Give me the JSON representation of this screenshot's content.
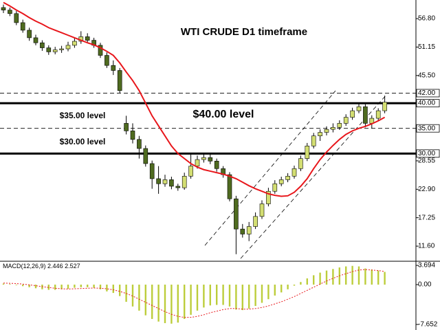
{
  "chart_data": [
    {
      "type": "candlestick",
      "ylim": [
        8.6,
        60.5
      ],
      "yticks": [
        {
          "value": 11.6,
          "label": "11.60"
        },
        17.25,
        {
          "value": 22.9,
          "label": "22.90"
        },
        28.55,
        {
          "value": 45.5,
          "label": "45.50"
        },
        51.15,
        {
          "value": 56.8,
          "label": "56.80"
        }
      ],
      "levels": [
        {
          "value": 42,
          "label": "42.00",
          "style": "dashed"
        },
        {
          "value": 40,
          "label": "40.00",
          "style": "thick"
        },
        {
          "value": 35,
          "label": "35.00",
          "style": "dashed"
        },
        {
          "value": 30,
          "label": "30.00",
          "style": "thick"
        }
      ],
      "up_color": "#d3de72",
      "down_color": "#4f6b20",
      "annotations": [
        "WTI CRUDE D1 timeframe",
        "$40.00 level",
        "$35.00 level",
        "$30.00 level"
      ],
      "ohlc": [
        [
          59,
          59.6,
          57.9,
          58.5
        ],
        [
          58.5,
          59,
          57.3,
          57.8
        ],
        [
          57.8,
          58.3,
          55.5,
          56
        ],
        [
          56,
          56.6,
          54,
          54.5
        ],
        [
          54.5,
          55,
          52.4,
          53
        ],
        [
          53,
          53.6,
          51.5,
          52
        ],
        [
          52,
          52.5,
          50.4,
          51
        ],
        [
          51,
          51.5,
          49.6,
          50.2
        ],
        [
          50.2,
          51.2,
          49.7,
          50.6
        ],
        [
          50.6,
          51.4,
          50,
          50.8
        ],
        [
          50.8,
          52.2,
          50.3,
          51.5
        ],
        [
          51.5,
          53,
          51,
          52.3
        ],
        [
          52.3,
          54.3,
          51.8,
          53.2
        ],
        [
          53.2,
          53.9,
          52,
          52.5
        ],
        [
          52.5,
          53,
          51,
          51.5
        ],
        [
          51.5,
          52,
          49,
          49.5
        ],
        [
          49.5,
          50.1,
          47,
          47.5
        ],
        [
          47.5,
          48.5,
          45.6,
          46.5
        ],
        [
          46.5,
          47,
          42,
          42.5
        ],
        [
          36,
          37.5,
          33.8,
          34.5
        ],
        [
          34.5,
          36,
          32,
          32.8
        ],
        [
          32.8,
          33.5,
          29,
          31
        ],
        [
          31,
          31.6,
          27.4,
          28
        ],
        [
          28,
          28.6,
          23,
          25
        ],
        [
          25,
          27.5,
          22,
          24
        ],
        [
          24,
          25.8,
          23.4,
          24.8
        ],
        [
          24.8,
          25.4,
          22.9,
          23.5
        ],
        [
          23.5,
          24,
          22.6,
          23.2
        ],
        [
          23.2,
          26.2,
          22.8,
          25.5
        ],
        [
          25.5,
          30,
          25,
          27.5
        ],
        [
          27.5,
          29.6,
          27,
          28.8
        ],
        [
          28.8,
          30,
          28.2,
          29.2
        ],
        [
          29.2,
          29.9,
          27.9,
          28.5
        ],
        [
          28.5,
          29,
          26.4,
          27
        ],
        [
          27,
          27.5,
          25.2,
          25.8
        ],
        [
          25.8,
          26.3,
          20.5,
          21
        ],
        [
          21,
          21.6,
          10,
          15
        ],
        [
          15,
          16,
          13.3,
          14
        ],
        [
          14,
          16.4,
          12.6,
          15.5
        ],
        [
          15.5,
          18.3,
          15,
          17.5
        ],
        [
          17.5,
          20.7,
          17,
          20
        ],
        [
          20,
          23.2,
          19.5,
          22.5
        ],
        [
          22.5,
          24.7,
          22,
          24
        ],
        [
          24,
          25.4,
          23.5,
          24.8
        ],
        [
          24.8,
          26.1,
          24.3,
          25.5
        ],
        [
          25.5,
          27.6,
          25,
          27
        ],
        [
          27,
          29.6,
          26.5,
          29
        ],
        [
          29,
          32.1,
          28.5,
          31.5
        ],
        [
          31.5,
          34.1,
          31,
          33.5
        ],
        [
          33.5,
          34.8,
          32.5,
          34.2
        ],
        [
          34.2,
          35.4,
          33.6,
          34.8
        ],
        [
          34.8,
          36,
          34.2,
          35.2
        ],
        [
          35.2,
          36.6,
          34.7,
          36
        ],
        [
          36,
          37.8,
          35.5,
          37.2
        ],
        [
          37.2,
          39.1,
          36.7,
          38.5
        ],
        [
          38.5,
          40,
          38,
          39.3
        ],
        [
          39.3,
          39.8,
          35.2,
          36
        ],
        [
          36,
          37.6,
          35,
          37
        ],
        [
          37,
          39,
          36.5,
          38.5
        ],
        [
          38.5,
          41.5,
          38,
          40.2
        ]
      ],
      "ma": {
        "color": "#e8161b",
        "values": [
          60,
          59.3,
          58.5,
          57.8,
          57,
          56.3,
          55.7,
          55,
          54.5,
          54,
          53.5,
          53,
          52.5,
          52,
          51.6,
          51,
          50.3,
          49.5,
          48,
          46.2,
          44.5,
          42.5,
          40,
          37.5,
          35.5,
          33.5,
          31.5,
          30,
          29,
          28,
          27.3,
          26.8,
          26.5,
          26.2,
          25.9,
          25.5,
          25,
          24.3,
          23.6,
          23,
          22.5,
          22,
          21.7,
          21.5,
          21.6,
          22.3,
          23.5,
          25,
          27,
          28.8,
          30.3,
          31.6,
          32.8,
          33.8,
          34.5,
          35,
          35.4,
          35.9,
          36.5,
          37.2
        ]
      }
    },
    {
      "type": "macd",
      "label": "MACD(12,26,9)",
      "ylim": [
        -8.72,
        4.49
      ],
      "yticks": [
        3.694,
        {
          "value": 0,
          "label": "0.00"
        },
        -7.652
      ],
      "histogram": {
        "color": "#bccd3a",
        "values": [
          0.2,
          0.1,
          -0.1,
          -0.3,
          -0.5,
          -0.7,
          -0.9,
          -1,
          -1,
          -0.9,
          -0.8,
          -0.6,
          -0.5,
          -0.5,
          -0.6,
          -0.9,
          -1.3,
          -1.6,
          -2.2,
          -3.3,
          -4.2,
          -5,
          -5.9,
          -6.6,
          -7.1,
          -7.4,
          -7.5,
          -7.3,
          -6.6,
          -5.8,
          -5,
          -4.4,
          -4,
          -3.9,
          -3.9,
          -4.2,
          -4.8,
          -4.9,
          -4.6,
          -4.1,
          -3.5,
          -2.8,
          -2.1,
          -1.5,
          -0.9,
          -0.2,
          0.5,
          1.2,
          1.8,
          2.3,
          2.7,
          3,
          3.3,
          3.5,
          3.6,
          3.5,
          3.1,
          2.9,
          2.7,
          2.446
        ]
      },
      "signal": {
        "color": "#e8161b",
        "values": [
          0.3,
          0.25,
          0.2,
          0.1,
          -0.05,
          -0.2,
          -0.4,
          -0.55,
          -0.7,
          -0.8,
          -0.85,
          -0.8,
          -0.75,
          -0.7,
          -0.65,
          -0.7,
          -0.8,
          -1,
          -1.3,
          -1.7,
          -2.2,
          -2.8,
          -3.4,
          -4,
          -4.6,
          -5.2,
          -5.7,
          -6.1,
          -6.3,
          -6.3,
          -6.1,
          -5.8,
          -5.4,
          -5.1,
          -4.8,
          -4.6,
          -4.6,
          -4.7,
          -4.7,
          -4.6,
          -4.4,
          -4.1,
          -3.7,
          -3.3,
          -2.8,
          -2.3,
          -1.7,
          -1.1,
          -0.5,
          0.1,
          0.7,
          1.2,
          1.7,
          2.1,
          2.5,
          2.8,
          2.9,
          2.8,
          2.7,
          2.527
        ]
      }
    }
  ]
}
